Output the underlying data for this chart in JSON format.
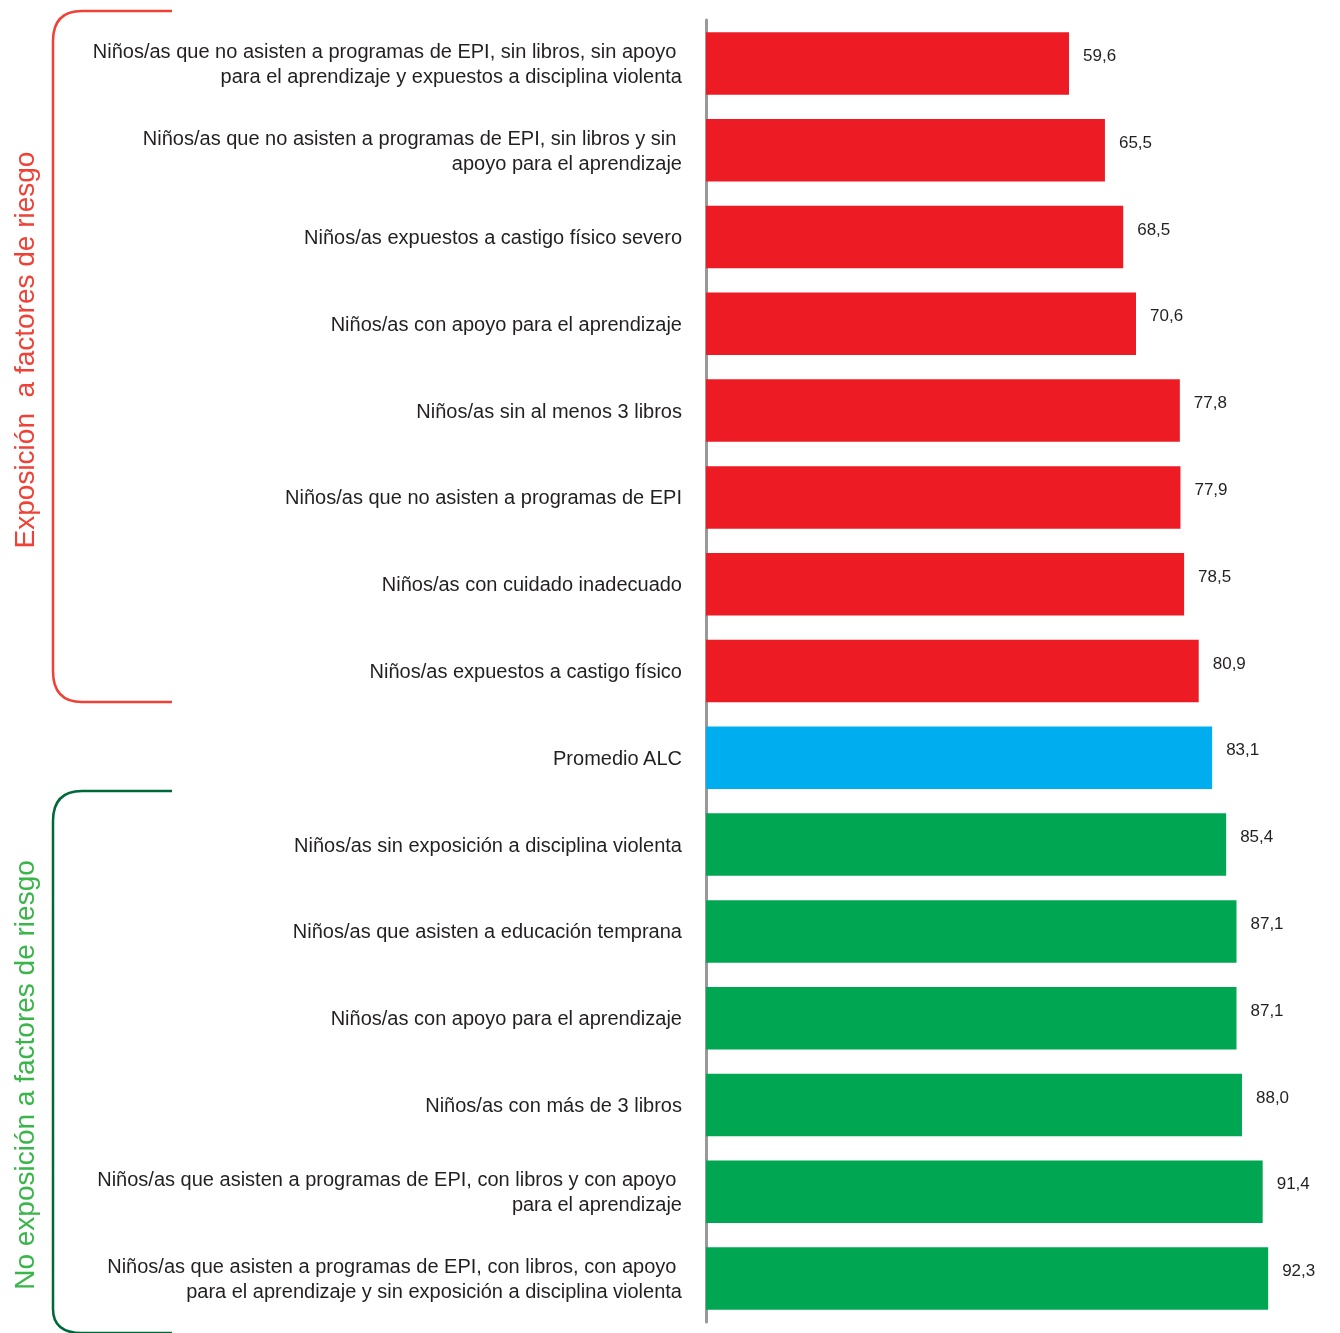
{
  "chart_data": {
    "type": "bar",
    "orientation": "horizontal",
    "categories": [
      "Niños/as que no asisten a programas de EPI, sin libros, sin apoyo para el aprendizaje y expuestos a disciplina violenta",
      "Niños/as que no asisten a programas de EPI, sin libros y sin apoyo para el aprendizaje",
      "Niños/as expuestos a castigo físico severo",
      "Niños/as con apoyo para el aprendizaje",
      "Niños/as sin al menos 3 libros",
      "Niños/as que no asisten a programas de EPI",
      "Niños/as con cuidado inadecuado",
      "Niños/as expuestos a castigo físico",
      "Promedio ALC",
      "Niños/as sin exposición a disciplina violenta",
      "Niños/as que asisten a educación temprana",
      "Niños/as con apoyo para el aprendizaje",
      "Niños/as con más de 3 libros",
      "Niños/as que asisten a programas de EPI, con libros y con apoyo para el aprendizaje",
      "Niños/as que asisten a programas de EPI, con libros, con apoyo para el aprendizaje y sin exposición a disciplina violenta"
    ],
    "values": [
      59.6,
      65.5,
      68.5,
      70.6,
      77.8,
      77.9,
      78.5,
      80.9,
      83.1,
      85.4,
      87.1,
      87.1,
      88.0,
      91.4,
      92.3
    ],
    "value_labels": [
      "59,6",
      "65,5",
      "68,5",
      "70,6",
      "77,8",
      "77,9",
      "78,5",
      "80,9",
      "83,1",
      "85,4",
      "87,1",
      "87,1",
      "88,0",
      "91,4",
      "92,3"
    ],
    "colors": [
      "#ed1c24",
      "#ed1c24",
      "#ed1c24",
      "#ed1c24",
      "#ed1c24",
      "#ed1c24",
      "#ed1c24",
      "#ed1c24",
      "#00aeef",
      "#00a651",
      "#00a651",
      "#00a651",
      "#00a651",
      "#00a651",
      "#00a651"
    ],
    "annotations": [
      "Exposición  a factores de riesgo",
      "No exposición a factores de riesgo"
    ]
  }
}
